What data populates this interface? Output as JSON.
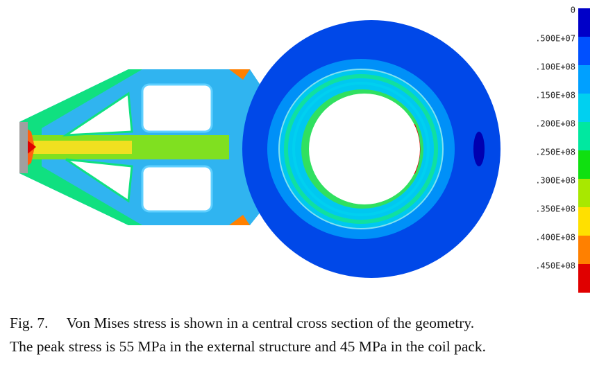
{
  "colorbar": {
    "labels": [
      "0",
      ".500E+07",
      ".100E+08",
      ".150E+08",
      ".200E+08",
      ".250E+08",
      ".300E+08",
      ".350E+08",
      ".400E+08",
      ".450E+08"
    ],
    "colors": [
      "#0000c8",
      "#0050ff",
      "#00a0ff",
      "#00d0f0",
      "#00e8a0",
      "#10e010",
      "#a8e800",
      "#ffe000",
      "#ff8000",
      "#e00000"
    ]
  },
  "caption": {
    "label": "Fig. 7.",
    "lines": [
      "Von Mises stress is shown in a central cross section of the geometry.",
      "The peak stress is 55 MPa in the external structure and 45 MPa in the coil pack."
    ]
  }
}
